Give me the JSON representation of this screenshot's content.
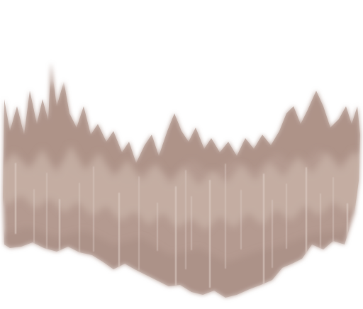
{
  "image": {
    "subject": "hair-texture-sprite",
    "colors": {
      "background": "#ffffff",
      "base": "#b49a90",
      "mid_band": "#c7b0a6",
      "dark_band": "#a88c82",
      "streak": "#dccdc6",
      "shadow": "#9f8378"
    }
  }
}
